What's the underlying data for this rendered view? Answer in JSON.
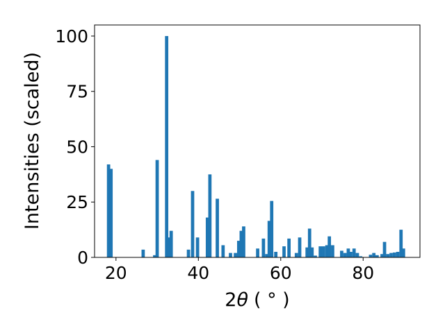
{
  "chart_data": {
    "type": "bar",
    "xlabel_main": "2",
    "xlabel_theta": "θ",
    "xlabel_unit": "( ° )",
    "ylabel": "Intensities (scaled)",
    "xlim": [
      14.8,
      93.8
    ],
    "ylim": [
      0,
      105
    ],
    "bar_width": 0.8,
    "color": "#1f77b4",
    "xticks": [
      20,
      40,
      60,
      80
    ],
    "xtick_labels": [
      "20",
      "40",
      "60",
      "80"
    ],
    "yticks": [
      0,
      25,
      50,
      75,
      100
    ],
    "ytick_labels": [
      "0",
      "25",
      "50",
      "75",
      "100"
    ],
    "grid": false,
    "bars": [
      {
        "x": 18.2,
        "y": 42
      },
      {
        "x": 18.8,
        "y": 40
      },
      {
        "x": 26.6,
        "y": 3.5
      },
      {
        "x": 29.4,
        "y": 1
      },
      {
        "x": 30.0,
        "y": 44
      },
      {
        "x": 32.3,
        "y": 100
      },
      {
        "x": 32.8,
        "y": 9
      },
      {
        "x": 33.4,
        "y": 12
      },
      {
        "x": 37.6,
        "y": 3.5
      },
      {
        "x": 38.6,
        "y": 30
      },
      {
        "x": 39.8,
        "y": 9
      },
      {
        "x": 42.2,
        "y": 18
      },
      {
        "x": 42.8,
        "y": 37.5
      },
      {
        "x": 44.6,
        "y": 26.5
      },
      {
        "x": 46.0,
        "y": 5.5
      },
      {
        "x": 47.8,
        "y": 2
      },
      {
        "x": 49.0,
        "y": 2
      },
      {
        "x": 49.8,
        "y": 7.5
      },
      {
        "x": 50.4,
        "y": 12
      },
      {
        "x": 51.0,
        "y": 14
      },
      {
        "x": 54.4,
        "y": 4
      },
      {
        "x": 55.8,
        "y": 8.5
      },
      {
        "x": 56.6,
        "y": 1.5
      },
      {
        "x": 57.2,
        "y": 16.5
      },
      {
        "x": 57.8,
        "y": 25.5
      },
      {
        "x": 58.8,
        "y": 2.5
      },
      {
        "x": 60.8,
        "y": 5
      },
      {
        "x": 62.0,
        "y": 8.5
      },
      {
        "x": 63.8,
        "y": 2
      },
      {
        "x": 64.6,
        "y": 9
      },
      {
        "x": 66.4,
        "y": 4.5
      },
      {
        "x": 67.0,
        "y": 13
      },
      {
        "x": 67.6,
        "y": 4.5
      },
      {
        "x": 68.4,
        "y": 0.8
      },
      {
        "x": 69.6,
        "y": 5
      },
      {
        "x": 70.4,
        "y": 5
      },
      {
        "x": 71.2,
        "y": 5.5
      },
      {
        "x": 71.8,
        "y": 9.5
      },
      {
        "x": 72.6,
        "y": 5.5
      },
      {
        "x": 74.8,
        "y": 3
      },
      {
        "x": 75.6,
        "y": 2
      },
      {
        "x": 76.4,
        "y": 4
      },
      {
        "x": 77.0,
        "y": 2.5
      },
      {
        "x": 77.8,
        "y": 4
      },
      {
        "x": 78.6,
        "y": 2
      },
      {
        "x": 79.4,
        "y": 0.5
      },
      {
        "x": 81.8,
        "y": 1.2
      },
      {
        "x": 82.6,
        "y": 2
      },
      {
        "x": 83.4,
        "y": 1
      },
      {
        "x": 84.6,
        "y": 1.5
      },
      {
        "x": 85.2,
        "y": 7
      },
      {
        "x": 86.0,
        "y": 1.5
      },
      {
        "x": 86.8,
        "y": 2
      },
      {
        "x": 87.6,
        "y": 2.2
      },
      {
        "x": 88.4,
        "y": 2.5
      },
      {
        "x": 89.2,
        "y": 12.5
      },
      {
        "x": 89.8,
        "y": 4
      }
    ]
  }
}
